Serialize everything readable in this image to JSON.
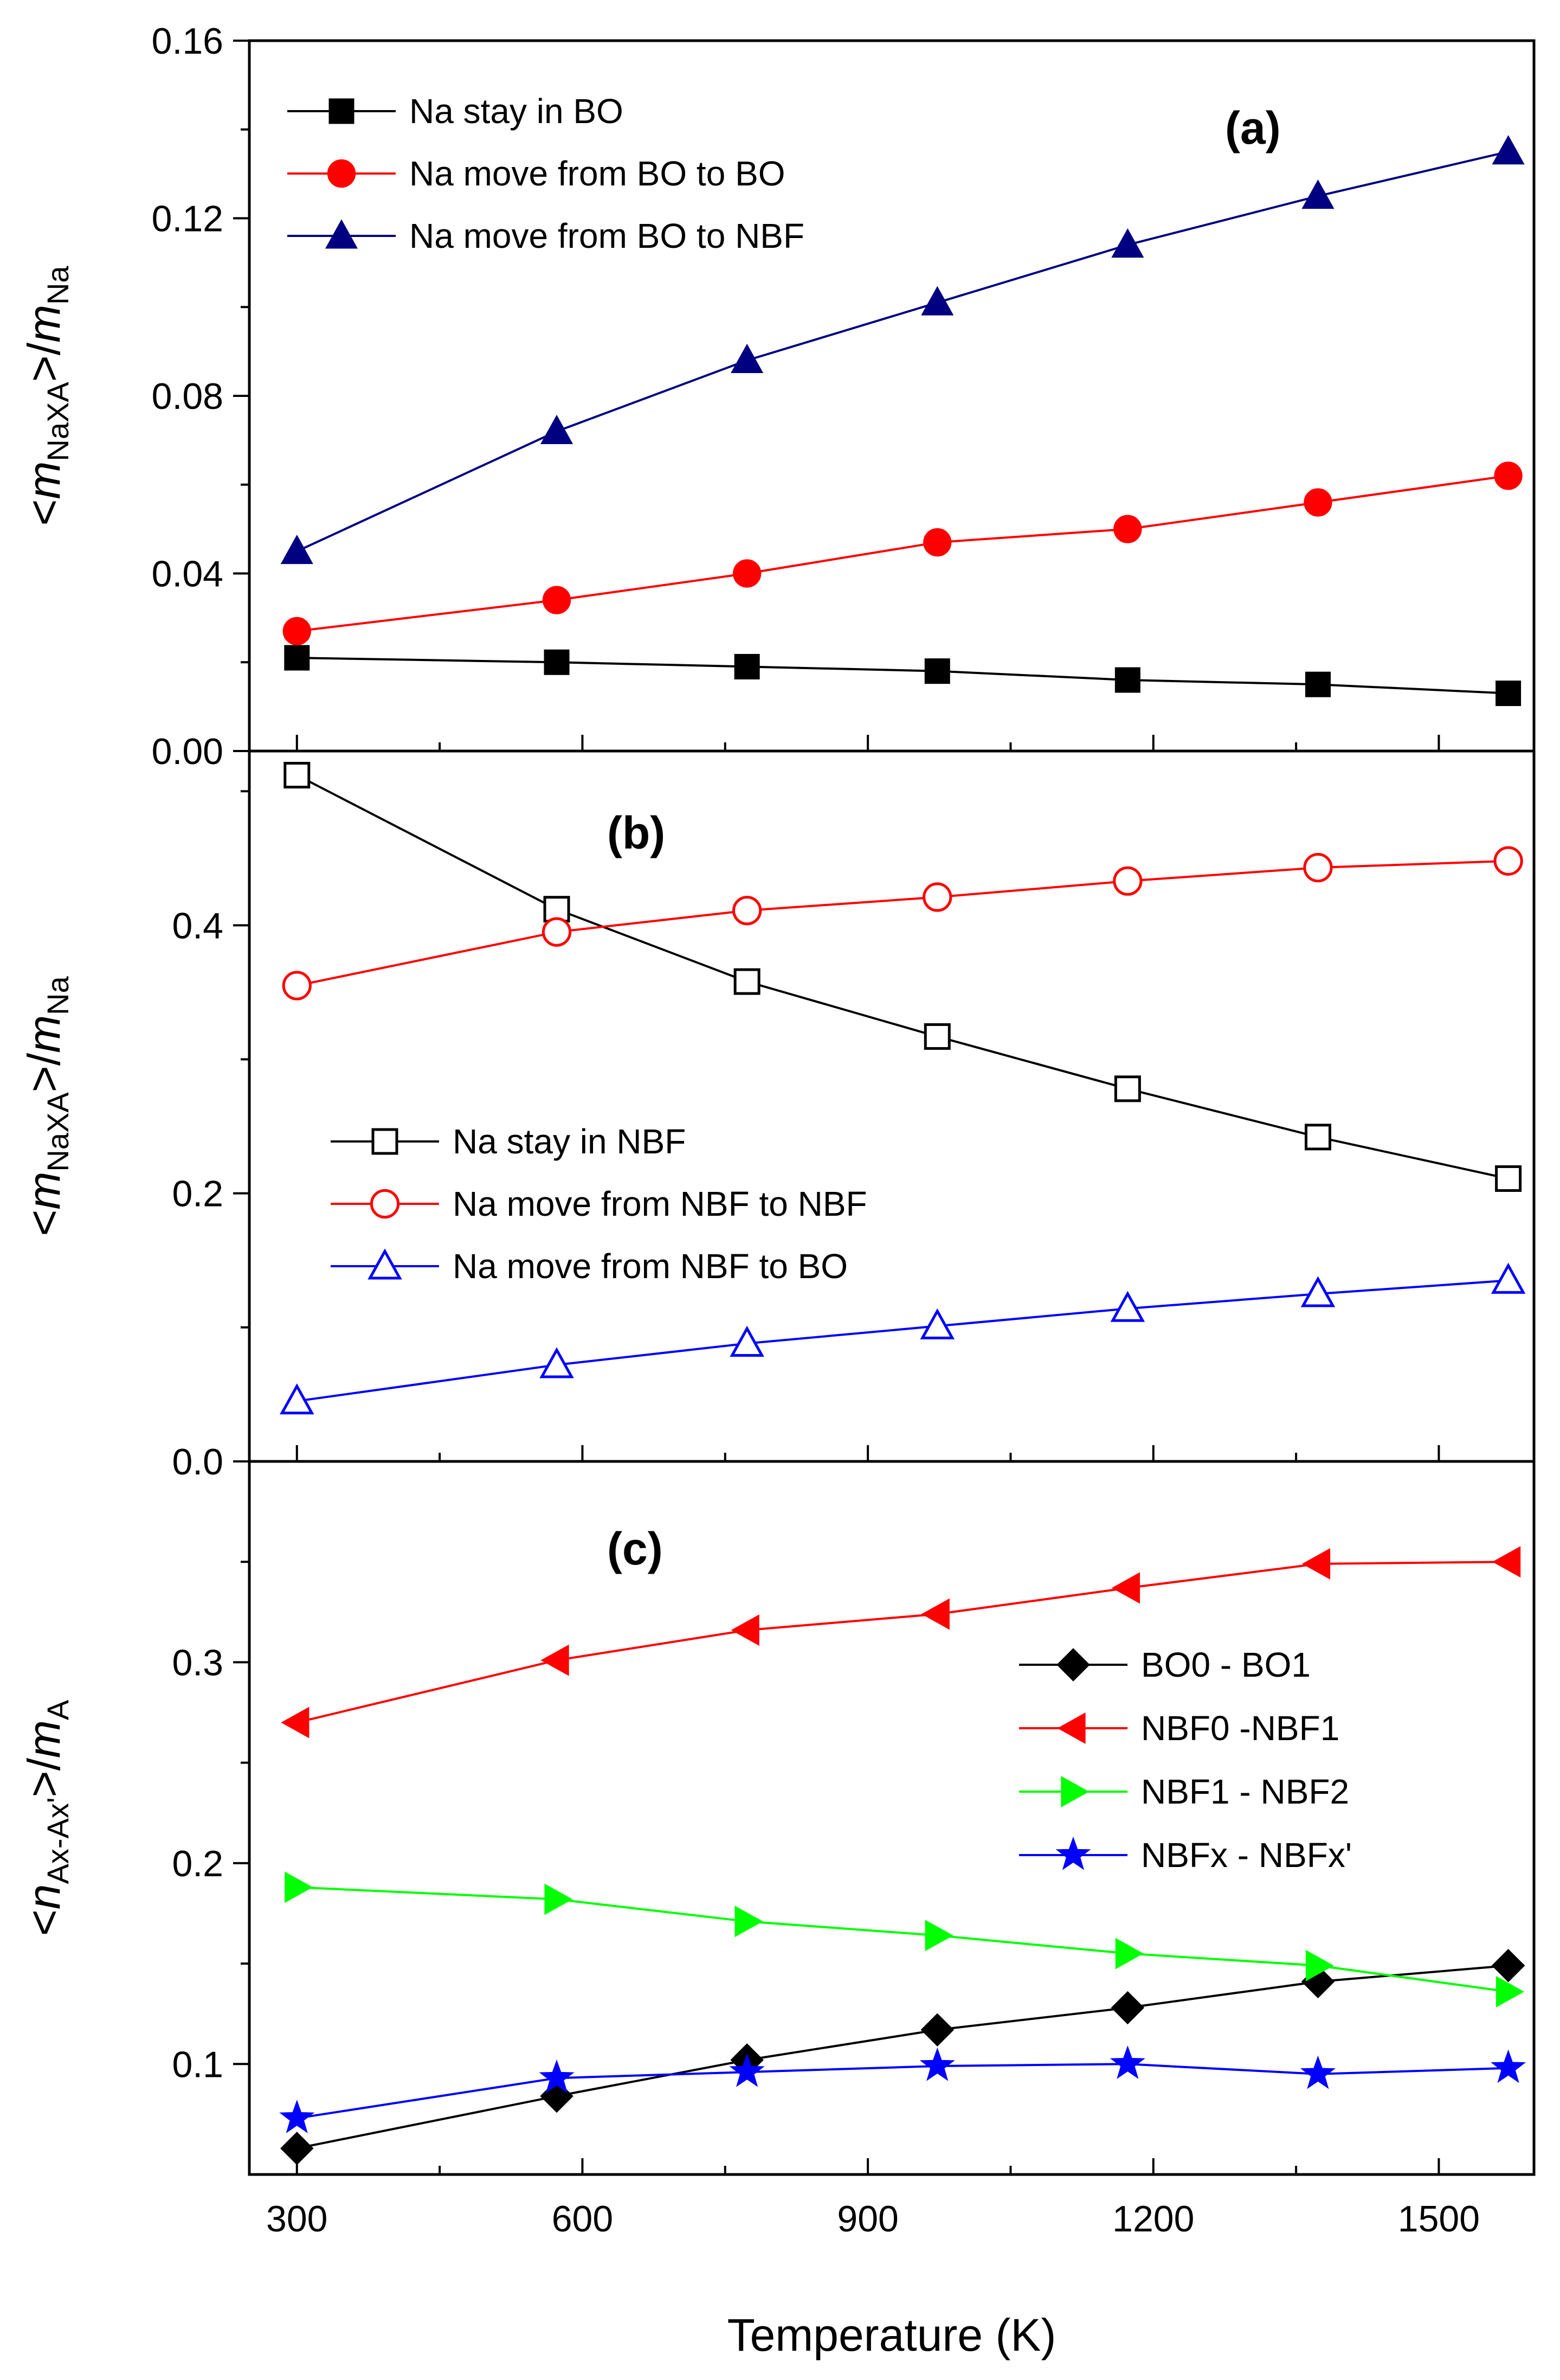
{
  "figure": {
    "xlabel": "Temperature (K)",
    "x_ticks": [
      300,
      600,
      900,
      1200,
      1500
    ],
    "xlim": [
      250,
      1600
    ]
  },
  "chart_data": [
    {
      "type": "line",
      "panel_label": "(a)",
      "ylabel": {
        "lt": "<",
        "var": "m",
        "sub": "NaXA",
        "gt": ">/",
        "var2": "m",
        "sub2": "Na"
      },
      "ylim": [
        0,
        0.16
      ],
      "y_ticks": [
        0.0,
        0.04,
        0.08,
        0.12,
        0.16
      ],
      "y_tick_labels": [
        "0.00",
        "0.04",
        "0.08",
        "0.12",
        "0.16"
      ],
      "legend_position": "top-left",
      "x": [
        300,
        573,
        773,
        973,
        1173,
        1373,
        1573
      ],
      "series": [
        {
          "name": "Na stay in BO",
          "color": "#000000",
          "marker": "square",
          "filled": true,
          "values": [
            0.021,
            0.02,
            0.019,
            0.018,
            0.016,
            0.015,
            0.013
          ]
        },
        {
          "name": "Na move from BO to BO",
          "color": "#ff0000",
          "marker": "circle",
          "filled": true,
          "values": [
            0.027,
            0.034,
            0.04,
            0.047,
            0.05,
            0.056,
            0.062
          ]
        },
        {
          "name": "Na move from BO to NBF",
          "color": "#000080",
          "marker": "triangle-up",
          "filled": true,
          "values": [
            0.045,
            0.072,
            0.088,
            0.101,
            0.114,
            0.125,
            0.135
          ]
        }
      ]
    },
    {
      "type": "line",
      "panel_label": "(b)",
      "ylabel": {
        "lt": "<",
        "var": "m",
        "sub": "NaXA",
        "gt": ">/",
        "var2": "m",
        "sub2": "Na"
      },
      "ylim": [
        0,
        0.53
      ],
      "y_ticks": [
        0.0,
        0.2,
        0.4
      ],
      "y_tick_labels": [
        "0.0",
        "0.2",
        "0.4"
      ],
      "legend_position": "center-left",
      "x": [
        300,
        573,
        773,
        973,
        1173,
        1373,
        1573
      ],
      "series": [
        {
          "name": "Na stay in NBF",
          "color": "#000000",
          "marker": "square",
          "filled": false,
          "values": [
            0.512,
            0.412,
            0.358,
            0.317,
            0.278,
            0.242,
            0.211
          ]
        },
        {
          "name": "Na move from NBF to NBF",
          "color": "#ff0000",
          "marker": "circle",
          "filled": false,
          "values": [
            0.355,
            0.395,
            0.411,
            0.421,
            0.433,
            0.443,
            0.448
          ]
        },
        {
          "name": "Na move from NBF to BO",
          "color": "#0000ff",
          "marker": "triangle-up",
          "filled": false,
          "values": [
            0.045,
            0.072,
            0.088,
            0.101,
            0.114,
            0.125,
            0.135
          ]
        }
      ]
    },
    {
      "type": "line",
      "panel_label": "(c)",
      "ylabel": {
        "lt": "<",
        "var": "n",
        "sub": "Ax-Ax'",
        "gt": ">/",
        "var2": "m",
        "sub2": "A"
      },
      "ylim": [
        0.045,
        0.4
      ],
      "y_ticks": [
        0.1,
        0.2,
        0.3
      ],
      "y_tick_labels": [
        "0.1",
        "0.2",
        "0.3"
      ],
      "legend_position": "center-right",
      "x": [
        300,
        573,
        773,
        973,
        1173,
        1373,
        1573
      ],
      "series": [
        {
          "name": "BO0 - BO1",
          "color": "#000000",
          "marker": "diamond",
          "filled": true,
          "values": [
            0.058,
            0.084,
            0.102,
            0.117,
            0.128,
            0.141,
            0.149
          ]
        },
        {
          "name": "NBF0 -NBF1",
          "color": "#ff0000",
          "marker": "triangle-left",
          "filled": true,
          "values": [
            0.27,
            0.301,
            0.316,
            0.324,
            0.337,
            0.349,
            0.35
          ]
        },
        {
          "name": "NBF1 - NBF2",
          "color": "#00ff00",
          "marker": "triangle-right",
          "filled": true,
          "values": [
            0.188,
            0.182,
            0.171,
            0.164,
            0.155,
            0.149,
            0.136
          ]
        },
        {
          "name": "NBFx - NBFx'",
          "color": "#0000ff",
          "marker": "star",
          "filled": true,
          "values": [
            0.073,
            0.093,
            0.096,
            0.099,
            0.1,
            0.095,
            0.098
          ]
        }
      ]
    }
  ]
}
